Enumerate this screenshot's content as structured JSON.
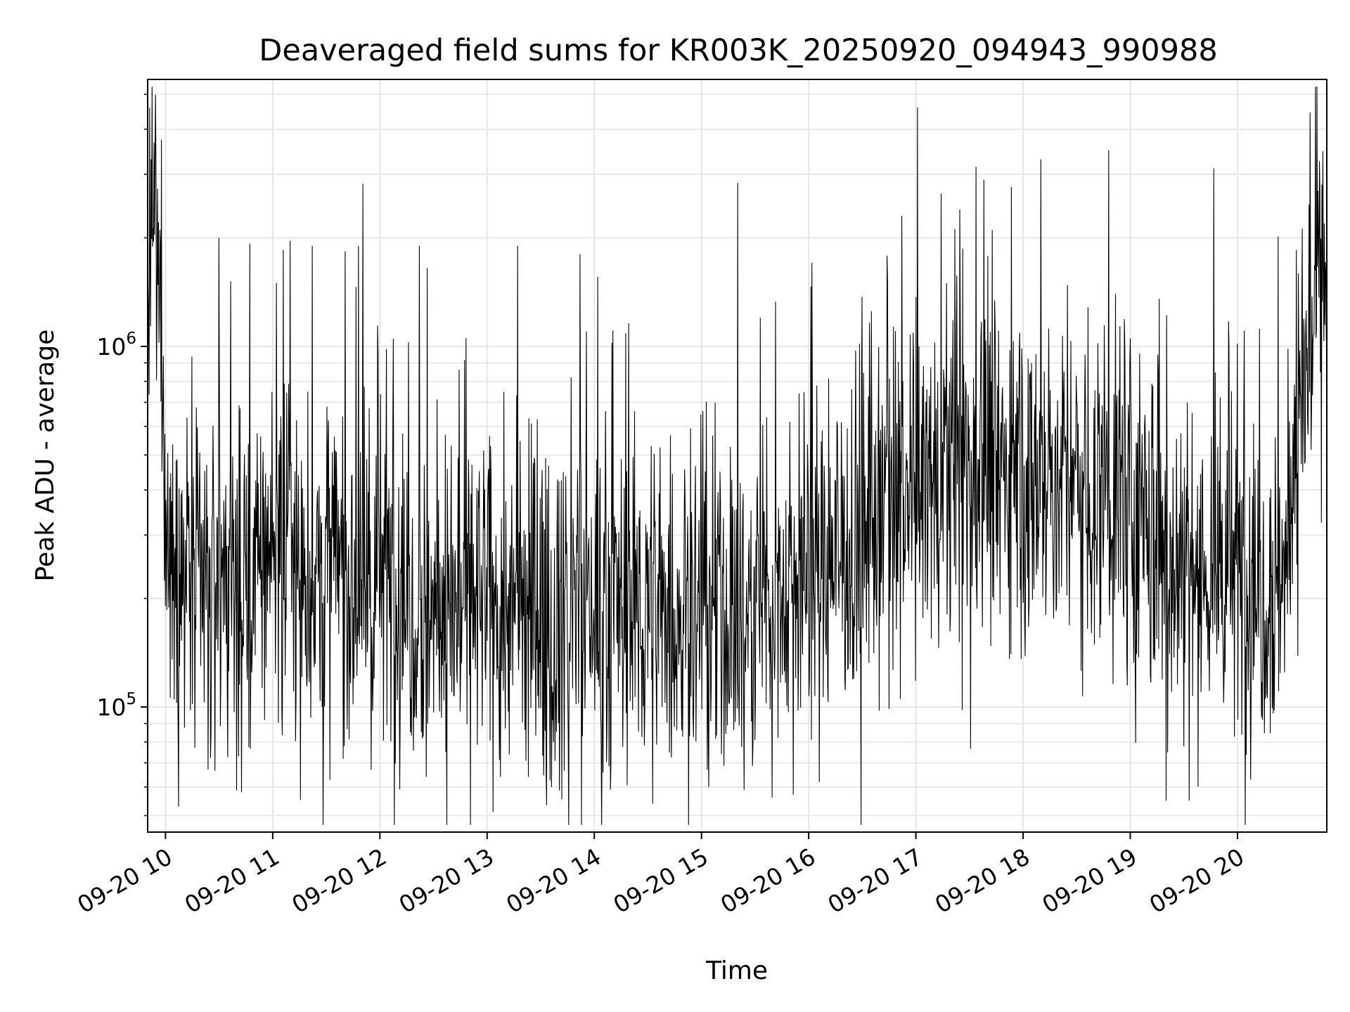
{
  "chart_data": {
    "type": "line",
    "title": "Deaveraged field sums for KR003K_20250920_094943_990988",
    "xlabel": "Time",
    "ylabel": "Peak ADU - average",
    "yscale": "log",
    "ylim": [
      45000,
      5500000
    ],
    "xlim": [
      "2025-09-20 09:50",
      "2025-09-20 20:50"
    ],
    "grid": true,
    "line_color": "#000000",
    "grid_color": "#e6e6e6",
    "x_ticks": [
      {
        "time": "2025-09-20 10:00",
        "label": "09-20 10"
      },
      {
        "time": "2025-09-20 11:00",
        "label": "09-20 11"
      },
      {
        "time": "2025-09-20 12:00",
        "label": "09-20 12"
      },
      {
        "time": "2025-09-20 13:00",
        "label": "09-20 13"
      },
      {
        "time": "2025-09-20 14:00",
        "label": "09-20 14"
      },
      {
        "time": "2025-09-20 15:00",
        "label": "09-20 15"
      },
      {
        "time": "2025-09-20 16:00",
        "label": "09-20 16"
      },
      {
        "time": "2025-09-20 17:00",
        "label": "09-20 17"
      },
      {
        "time": "2025-09-20 18:00",
        "label": "09-20 18"
      },
      {
        "time": "2025-09-20 19:00",
        "label": "09-20 19"
      },
      {
        "time": "2025-09-20 20:00",
        "label": "09-20 20"
      }
    ],
    "y_ticks": [
      {
        "value": 100000,
        "base": "10",
        "exp": "5"
      },
      {
        "value": 1000000,
        "base": "10",
        "exp": "6"
      }
    ],
    "series": [
      {
        "values": [
          [
            "2025-09-20 09:50",
            1300000
          ],
          [
            "2025-09-20 09:54",
            1900000
          ],
          [
            "2025-09-20 09:58",
            1100000
          ],
          [
            "2025-09-20 10:01",
            300000
          ],
          [
            "2025-09-20 10:05",
            220000
          ],
          [
            "2025-09-20 10:10",
            230000
          ],
          [
            "2025-09-20 10:15",
            210000
          ],
          [
            "2025-09-20 10:20",
            240000
          ],
          [
            "2025-09-20 10:25",
            200000
          ],
          [
            "2025-09-20 10:30",
            230000
          ],
          [
            "2025-09-20 10:35",
            220000
          ],
          [
            "2025-09-20 10:40",
            210000
          ],
          [
            "2025-09-20 10:45",
            230000
          ],
          [
            "2025-09-20 10:50",
            240000
          ],
          [
            "2025-09-20 10:55",
            260000
          ],
          [
            "2025-09-20 11:00",
            300000
          ],
          [
            "2025-09-20 11:05",
            280000
          ],
          [
            "2025-09-20 11:10",
            250000
          ],
          [
            "2025-09-20 11:15",
            230000
          ],
          [
            "2025-09-20 11:20",
            220000
          ],
          [
            "2025-09-20 11:30",
            240000
          ],
          [
            "2025-09-20 11:40",
            230000
          ],
          [
            "2025-09-20 11:50",
            220000
          ],
          [
            "2025-09-20 12:00",
            230000
          ],
          [
            "2025-09-20 12:10",
            210000
          ],
          [
            "2025-09-20 12:20",
            200000
          ],
          [
            "2025-09-20 12:30",
            190000
          ],
          [
            "2025-09-20 12:40",
            200000
          ],
          [
            "2025-09-20 12:50",
            195000
          ],
          [
            "2025-09-20 13:00",
            190000
          ],
          [
            "2025-09-20 13:10",
            185000
          ],
          [
            "2025-09-20 13:20",
            180000
          ],
          [
            "2025-09-20 13:30",
            185000
          ],
          [
            "2025-09-20 13:40",
            180000
          ],
          [
            "2025-09-20 13:50",
            190000
          ],
          [
            "2025-09-20 14:00",
            195000
          ],
          [
            "2025-09-20 14:10",
            190000
          ],
          [
            "2025-09-20 14:20",
            185000
          ],
          [
            "2025-09-20 14:30",
            190000
          ],
          [
            "2025-09-20 14:40",
            185000
          ],
          [
            "2025-09-20 14:50",
            180000
          ],
          [
            "2025-09-20 15:00",
            185000
          ],
          [
            "2025-09-20 15:10",
            180000
          ],
          [
            "2025-09-20 15:20",
            175000
          ],
          [
            "2025-09-20 15:30",
            180000
          ],
          [
            "2025-09-20 15:40",
            200000
          ],
          [
            "2025-09-20 15:50",
            220000
          ],
          [
            "2025-09-20 16:00",
            240000
          ],
          [
            "2025-09-20 16:10",
            260000
          ],
          [
            "2025-09-20 16:20",
            280000
          ],
          [
            "2025-09-20 16:30",
            300000
          ],
          [
            "2025-09-20 16:40",
            320000
          ],
          [
            "2025-09-20 16:50",
            340000
          ],
          [
            "2025-09-20 17:00",
            380000
          ],
          [
            "2025-09-20 17:10",
            420000
          ],
          [
            "2025-09-20 17:20",
            450000
          ],
          [
            "2025-09-20 17:30",
            470000
          ],
          [
            "2025-09-20 17:40",
            480000
          ],
          [
            "2025-09-20 17:50",
            460000
          ],
          [
            "2025-09-20 18:00",
            450000
          ],
          [
            "2025-09-20 18:10",
            440000
          ],
          [
            "2025-09-20 18:20",
            430000
          ],
          [
            "2025-09-20 18:30",
            420000
          ],
          [
            "2025-09-20 18:40",
            400000
          ],
          [
            "2025-09-20 18:50",
            380000
          ],
          [
            "2025-09-20 19:00",
            340000
          ],
          [
            "2025-09-20 19:10",
            300000
          ],
          [
            "2025-09-20 19:20",
            280000
          ],
          [
            "2025-09-20 19:30",
            260000
          ],
          [
            "2025-09-20 19:40",
            250000
          ],
          [
            "2025-09-20 19:50",
            240000
          ],
          [
            "2025-09-20 20:00",
            230000
          ],
          [
            "2025-09-20 20:10",
            220000
          ],
          [
            "2025-09-20 20:20",
            230000
          ],
          [
            "2025-09-20 20:28",
            250000
          ],
          [
            "2025-09-20 20:32",
            600000
          ],
          [
            "2025-09-20 20:38",
            900000
          ],
          [
            "2025-09-20 20:44",
            1200000
          ],
          [
            "2025-09-20 20:50",
            1600000
          ]
        ],
        "peaks": [
          [
            "2025-09-20 09:52",
            3300000
          ],
          [
            "2025-09-20 10:30",
            2000000
          ],
          [
            "2025-09-20 11:02",
            1500000
          ],
          [
            "2025-09-20 11:22",
            1900000
          ],
          [
            "2025-09-20 11:48",
            1900000
          ],
          [
            "2025-09-20 12:22",
            1900000
          ],
          [
            "2025-09-20 13:17",
            1900000
          ],
          [
            "2025-09-20 13:52",
            1800000
          ],
          [
            "2025-09-20 15:33",
            1200000
          ],
          [
            "2025-09-20 16:52",
            2300000
          ],
          [
            "2025-09-20 17:01",
            4600000
          ],
          [
            "2025-09-20 17:38",
            2900000
          ],
          [
            "2025-09-20 18:10",
            3300000
          ],
          [
            "2025-09-20 18:48",
            3500000
          ],
          [
            "2025-09-20 20:45",
            2700000
          ]
        ],
        "dips": [
          [
            "2025-09-20 10:41",
            73000
          ],
          [
            "2025-09-20 11:55",
            67000
          ],
          [
            "2025-09-20 12:26",
            64000
          ],
          [
            "2025-09-20 13:23",
            64000
          ],
          [
            "2025-09-20 13:36",
            60000
          ],
          [
            "2025-09-20 14:09",
            59000
          ],
          [
            "2025-09-20 15:04",
            60000
          ],
          [
            "2025-09-20 16:06",
            62000
          ],
          [
            "2025-09-20 19:20",
            55000
          ],
          [
            "2025-09-20 19:33",
            55000
          ]
        ]
      }
    ]
  }
}
